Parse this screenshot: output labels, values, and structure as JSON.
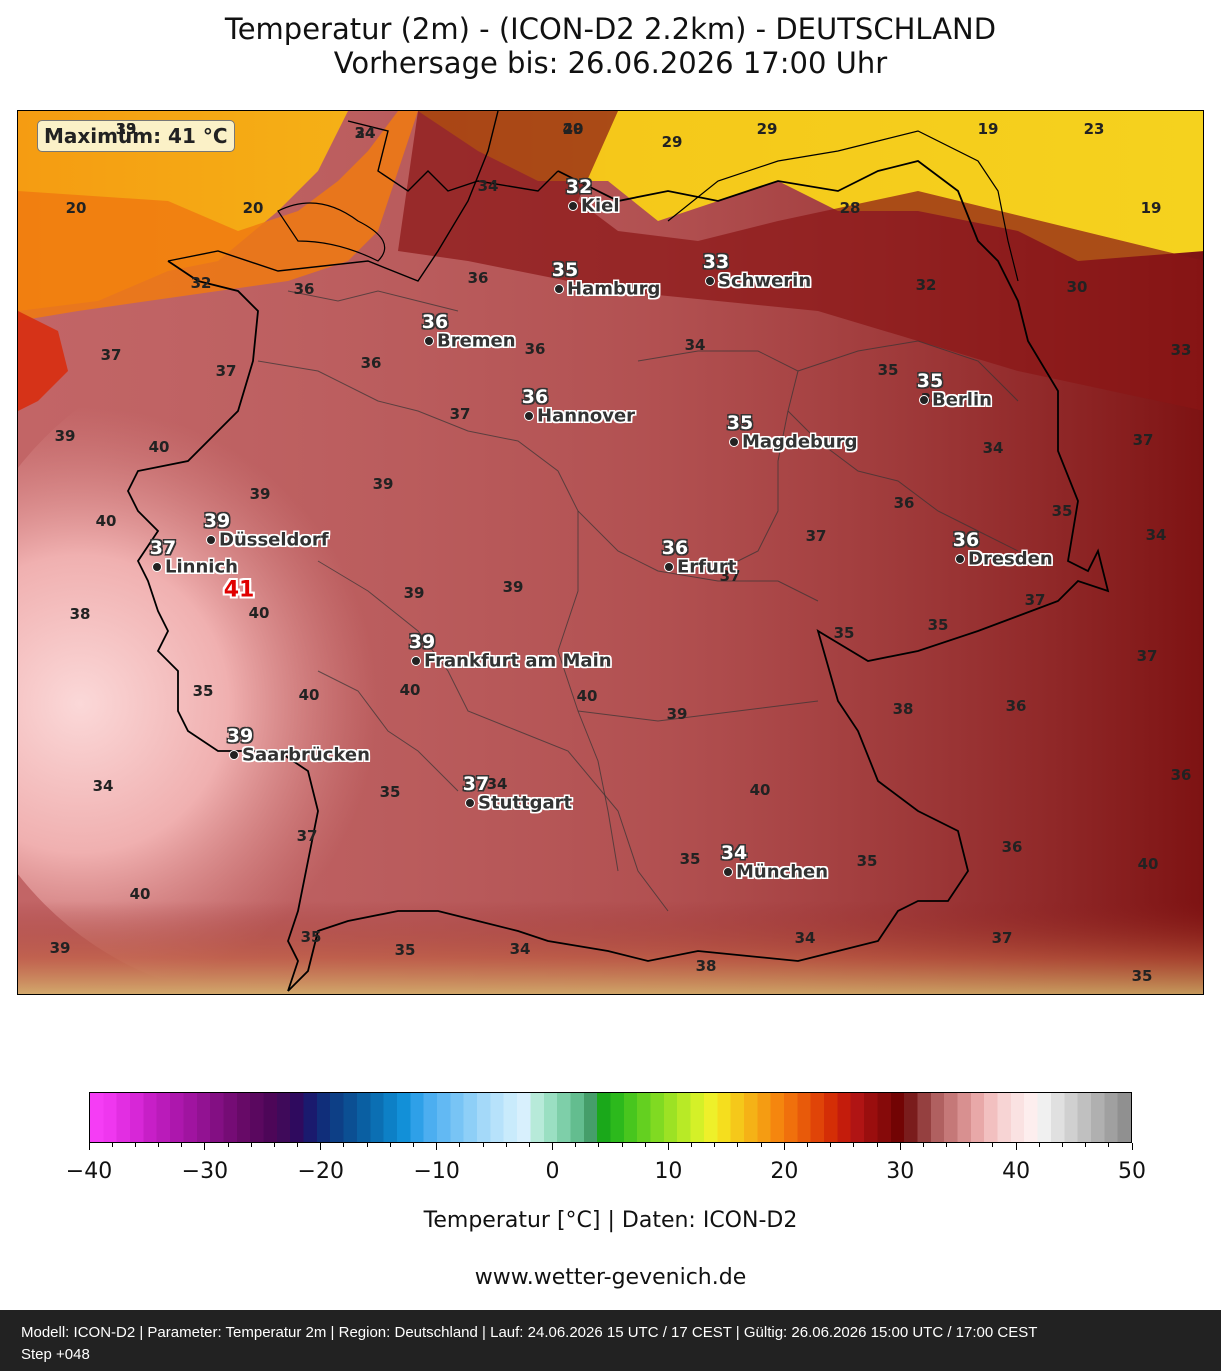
{
  "title": {
    "line1": "Temperatur (2m) - (ICON-D2 2.2km) - DEUTSCHLAND",
    "line2": "Vorhersage bis: 26.06.2026 17:00 Uhr"
  },
  "map": {
    "maximum_label": "Maximum: 41 °C",
    "max_value": "41",
    "cities": [
      {
        "name": "Kiel",
        "value": "32"
      },
      {
        "name": "Hamburg",
        "value": "35"
      },
      {
        "name": "Schwerin",
        "value": "33"
      },
      {
        "name": "Bremen",
        "value": "36"
      },
      {
        "name": "Berlin",
        "value": "35"
      },
      {
        "name": "Hannover",
        "value": "36"
      },
      {
        "name": "Magdeburg",
        "value": "35"
      },
      {
        "name": "Düsseldorf",
        "value": "39"
      },
      {
        "name": "Linnich",
        "value": "37"
      },
      {
        "name": "Erfurt",
        "value": "36"
      },
      {
        "name": "Dresden",
        "value": "36"
      },
      {
        "name": "Frankfurt am Main",
        "value": "39"
      },
      {
        "name": "Saarbrücken",
        "value": "39"
      },
      {
        "name": "Stuttgart",
        "value": "37"
      },
      {
        "name": "München",
        "value": "34"
      }
    ],
    "contour_labels": [
      "19",
      "24",
      "29",
      "29",
      "29",
      "19",
      "23",
      "34",
      "20",
      "20",
      "19",
      "28",
      "32",
      "36",
      "36",
      "30",
      "32",
      "37",
      "37",
      "36",
      "36",
      "34",
      "33",
      "37",
      "35",
      "39",
      "40",
      "37",
      "34",
      "34",
      "40",
      "39",
      "39",
      "36",
      "35",
      "34",
      "37",
      "37",
      "39",
      "39",
      "37",
      "35",
      "38",
      "40",
      "35",
      "37",
      "35",
      "40",
      "40",
      "40",
      "39",
      "38",
      "36",
      "36",
      "35",
      "40",
      "34",
      "37",
      "40",
      "40",
      "36",
      "35",
      "35",
      "39",
      "35",
      "35",
      "34",
      "34",
      "38",
      "37",
      "35",
      "34",
      "33",
      "34",
      "40"
    ]
  },
  "colorbar": {
    "min": -40,
    "max": 50,
    "tick_labels": [
      "−40",
      "−30",
      "−20",
      "−10",
      "0",
      "10",
      "20",
      "30",
      "40",
      "50"
    ],
    "colors": [
      "#f53df5",
      "#ef37ef",
      "#e22ee2",
      "#d727d7",
      "#c71fc7",
      "#ba1bba",
      "#ad17ad",
      "#a014a0",
      "#921292",
      "#830f83",
      "#750c75",
      "#670a67",
      "#5a085f",
      "#4d0658",
      "#3f0a5a",
      "#2f0a5e",
      "#1a1a6e",
      "#102e7a",
      "#0d3f86",
      "#0b4f93",
      "#0a5fa2",
      "#0b6fb3",
      "#0d80c6",
      "#1290d8",
      "#2ea0e8",
      "#4caef0",
      "#62b9f3",
      "#78c4f5",
      "#8ecff7",
      "#a4d9f9",
      "#b7e2fb",
      "#c9ebfc",
      "#d8f0fd",
      "#b7ead9",
      "#9adfc2",
      "#7ecfa9",
      "#63bd8f",
      "#459e6a",
      "#1aa81a",
      "#2cb91c",
      "#48c61e",
      "#64d020",
      "#80da22",
      "#9ce224",
      "#b8ea26",
      "#d4f028",
      "#eef02a",
      "#f5de1e",
      "#f5c81a",
      "#f5b216",
      "#f59c12",
      "#f5860e",
      "#f0700c",
      "#e85a0a",
      "#e04408",
      "#d42e06",
      "#c41c0c",
      "#b01414",
      "#9a0e0e",
      "#860a0a",
      "#720404",
      "#7a1c1c",
      "#954040",
      "#b06060",
      "#c57878",
      "#d89090",
      "#e8a8a8",
      "#f2c0c0",
      "#f7d4d4",
      "#fae2e2",
      "#fdeeee",
      "#f0f0f0",
      "#e0e0e0",
      "#d0d0d0",
      "#c0c0c0",
      "#b0b0b0",
      "#a0a0a0",
      "#909090"
    ],
    "label": "Temperatur [°C] | Daten: ICON-D2"
  },
  "website": "www.wetter-gevenich.de",
  "footer": {
    "line1": "Modell: ICON-D2 | Parameter: Temperatur 2m | Region: Deutschland | Lauf: 24.06.2026 15 UTC / 17 CEST | Gültig: 26.06.2026 15:00 UTC / 17:00 CEST",
    "line2": "Step +048"
  }
}
